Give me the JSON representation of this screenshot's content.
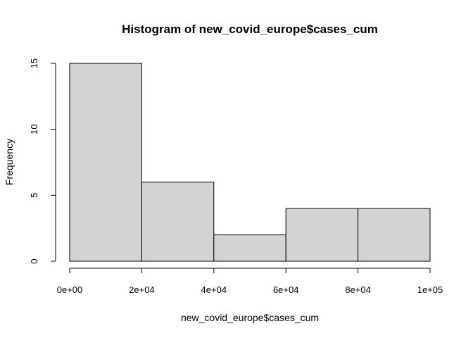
{
  "chart_data": {
    "type": "bar",
    "title": "Histogram of new_covid_europe$cases_cum",
    "xlabel": "new_covid_europe$cases_cum",
    "ylabel": "Frequency",
    "bins": [
      {
        "from": 0,
        "to": 20000,
        "count": 15
      },
      {
        "from": 20000,
        "to": 40000,
        "count": 6
      },
      {
        "from": 40000,
        "to": 60000,
        "count": 2
      },
      {
        "from": 60000,
        "to": 80000,
        "count": 4
      },
      {
        "from": 80000,
        "to": 100000,
        "count": 4
      }
    ],
    "x_ticks": [
      {
        "value": 0,
        "label": "0e+00"
      },
      {
        "value": 20000,
        "label": "2e+04"
      },
      {
        "value": 40000,
        "label": "4e+04"
      },
      {
        "value": 60000,
        "label": "6e+04"
      },
      {
        "value": 80000,
        "label": "8e+04"
      },
      {
        "value": 100000,
        "label": "1e+05"
      }
    ],
    "y_ticks": [
      {
        "value": 0,
        "label": "0"
      },
      {
        "value": 5,
        "label": "5"
      },
      {
        "value": 10,
        "label": "10"
      },
      {
        "value": 15,
        "label": "15"
      }
    ],
    "xlim": [
      0,
      100000
    ],
    "ylim": [
      0,
      15
    ],
    "grid": false,
    "colors": {
      "bar_fill": "#d3d3d3",
      "bar_stroke": "#000000",
      "axis": "#000000"
    }
  }
}
